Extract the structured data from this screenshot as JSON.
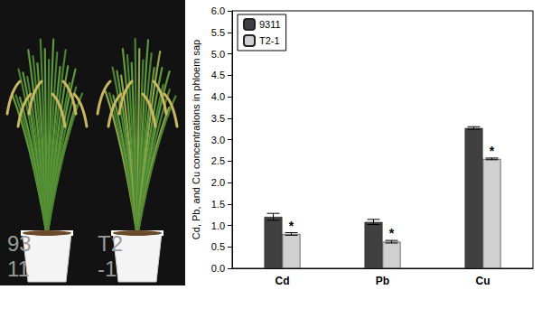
{
  "chart_data": {
    "type": "bar",
    "y_label": "Cd, Pb, and Cu concentrations in phloem sap",
    "categories": [
      "Cd",
      "Pb",
      "Cu"
    ],
    "series": [
      {
        "name": "9311",
        "color": "#404040",
        "values": [
          1.2,
          1.08,
          3.27
        ],
        "errors": [
          0.08,
          0.06,
          0.03
        ]
      },
      {
        "name": "T2-1",
        "color": "#d0d0d0",
        "values": [
          0.8,
          0.62,
          2.55
        ],
        "errors": [
          0.03,
          0.03,
          0.02
        ],
        "annotations": [
          "*",
          "*",
          "*"
        ]
      }
    ],
    "ylim": [
      0,
      6
    ],
    "yticks": [
      {
        "value": 0,
        "label": "0.0"
      },
      0.5,
      {
        "value": 1,
        "label": "1.0"
      },
      1.5,
      {
        "value": 2,
        "label": "2.0"
      },
      2.5,
      {
        "value": 3,
        "label": "3.0"
      },
      3.5,
      {
        "value": 4,
        "label": "4.0"
      },
      4.5,
      {
        "value": 5,
        "label": "5.0"
      },
      5.5,
      {
        "value": 6,
        "label": "6.0"
      }
    ],
    "grid": false,
    "legend": "upper left"
  },
  "photo": {
    "labels": [
      [
        "93",
        "11"
      ],
      [
        "T2",
        "-1"
      ]
    ]
  }
}
